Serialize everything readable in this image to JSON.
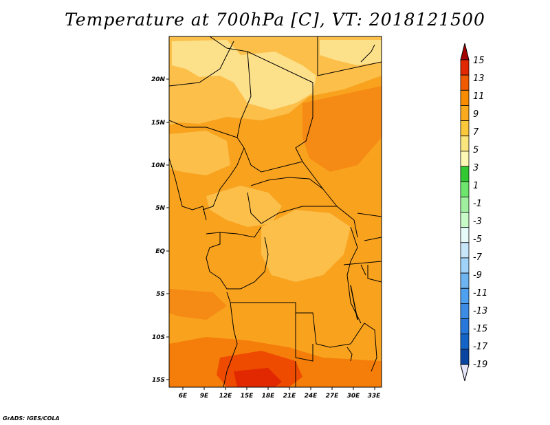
{
  "title": "Temperature at 700hPa [C], VT: 2018121500",
  "credit": "GrADS: IGES/COLA",
  "map": {
    "lat_labels": [
      "20N",
      "15N",
      "10N",
      "5N",
      "EQ",
      "5S",
      "10S",
      "15S"
    ],
    "lon_labels": [
      "6E",
      "9E",
      "12E",
      "15E",
      "18E",
      "21E",
      "24E",
      "27E",
      "30E",
      "33E"
    ]
  },
  "colorbar": {
    "labels": [
      "15",
      "13",
      "11",
      "9",
      "7",
      "5",
      "3",
      "1",
      "-1",
      "-3",
      "-5",
      "-7",
      "-9",
      "-11",
      "-13",
      "-15",
      "-17",
      "-19"
    ],
    "colors": [
      "#a50000",
      "#e12800",
      "#f05a00",
      "#f98c00",
      "#fbaa1e",
      "#fbc83c",
      "#fbe67e",
      "#fdf8b4",
      "#32c832",
      "#6ee66e",
      "#a0f0a0",
      "#c8fac8",
      "#e6fafa",
      "#c8e6fa",
      "#a0d2fa",
      "#6eb4f0",
      "#50a0f0",
      "#3c8ce6",
      "#2878dc",
      "#1464c8",
      "#0a46a0",
      "#0a1e78"
    ]
  },
  "colors": {
    "warm_orange": "#f9a21e",
    "light_orange": "#fbbf4a",
    "pale_yellow": "#fde08a",
    "deep_orange": "#f57e0a",
    "red_orange": "#ee4a00",
    "boundary": "#000000"
  }
}
